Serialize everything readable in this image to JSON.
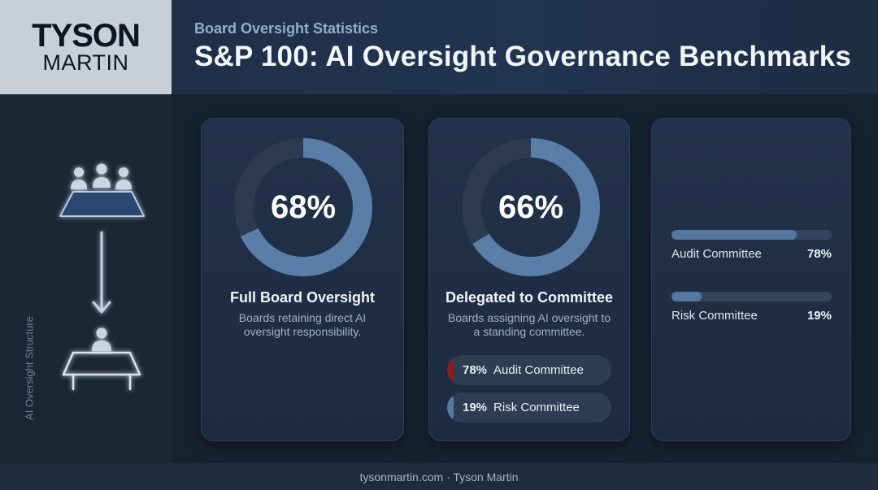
{
  "header": {
    "logo_line1": "TYSON",
    "logo_line2": "MARTIN",
    "eyebrow": "Board Oversight Statistics",
    "title": "S&P 100: AI Oversight Governance Benchmarks"
  },
  "sidebar": {
    "label": "AI Oversight Structure",
    "icons": [
      "board-group-icon",
      "arrow-down-icon",
      "committee-member-icon"
    ]
  },
  "cards": [
    {
      "value_label": "68%",
      "title": "Full Board Oversight",
      "description": "Boards retaining direct AI oversight responsibility."
    },
    {
      "value_label": "66%",
      "title": "Delegated to Committee",
      "description": "Boards assigning AI oversight to a standing committee.",
      "pills": [
        {
          "pct": "78%",
          "label": "Audit Committee",
          "color": "#8a1d1d"
        },
        {
          "pct": "19%",
          "label": "Risk Committee",
          "color": "#5577a0"
        }
      ]
    },
    {
      "bars": [
        {
          "label": "Audit Committee",
          "value_label": "78%"
        },
        {
          "label": "Risk Committee",
          "value_label": "19%"
        }
      ]
    }
  ],
  "chart_data": [
    {
      "type": "pie",
      "style": "donut",
      "categories": [
        "Full Board Oversight"
      ],
      "values": [
        68
      ],
      "max": 100,
      "color": "#5a7ea8"
    },
    {
      "type": "pie",
      "style": "donut",
      "categories": [
        "Delegated to Committee"
      ],
      "values": [
        66
      ],
      "max": 100,
      "color": "#5a7ea8"
    },
    {
      "type": "bar",
      "orientation": "horizontal",
      "categories": [
        "Audit Committee",
        "Risk Committee"
      ],
      "values": [
        78,
        19
      ],
      "xlim": [
        0,
        100
      ],
      "color": "#5577a0"
    }
  ],
  "colors": {
    "background": "#16222f",
    "accent": "#5a7ea8",
    "track": "#2c3b4f"
  },
  "footer": {
    "text": "tysonmartin.com · Tyson Martin"
  }
}
